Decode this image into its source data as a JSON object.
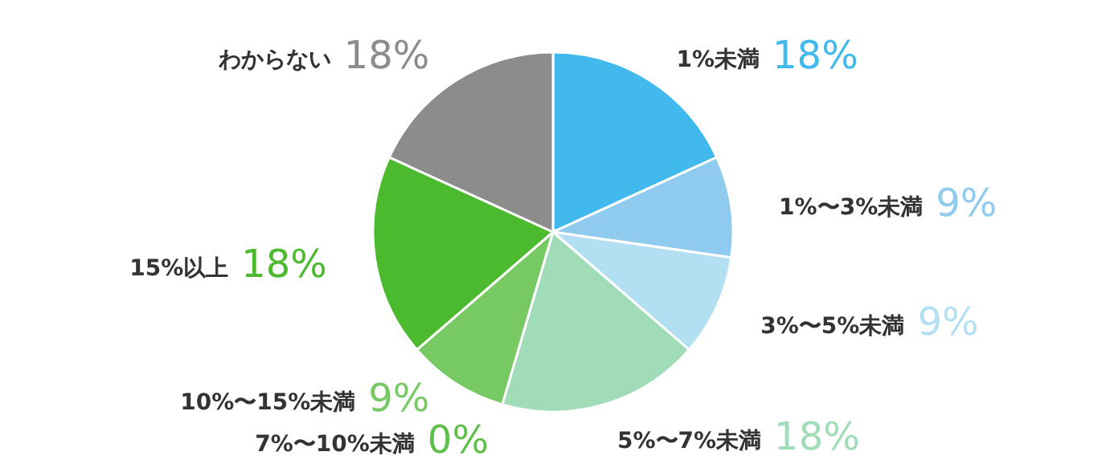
{
  "chart_data": {
    "type": "pie",
    "categories": [
      "1%未満",
      "1%〜3%未満",
      "3%〜5%未満",
      "5%〜7%未満",
      "7%〜10%未満",
      "10%〜15%未満",
      "15%以上",
      "わからない"
    ],
    "values": [
      18,
      9,
      9,
      18,
      0,
      9,
      18,
      18
    ],
    "colors": [
      "#42b9ec",
      "#8ecbee",
      "#b3dff2",
      "#9fdcb7",
      "#5fbf4a",
      "#76c963",
      "#4cba2e",
      "#8c8c8c"
    ],
    "value_labels": [
      "18%",
      "9%",
      "9%",
      "18%",
      "0%",
      "9%",
      "18%",
      "18%"
    ]
  }
}
